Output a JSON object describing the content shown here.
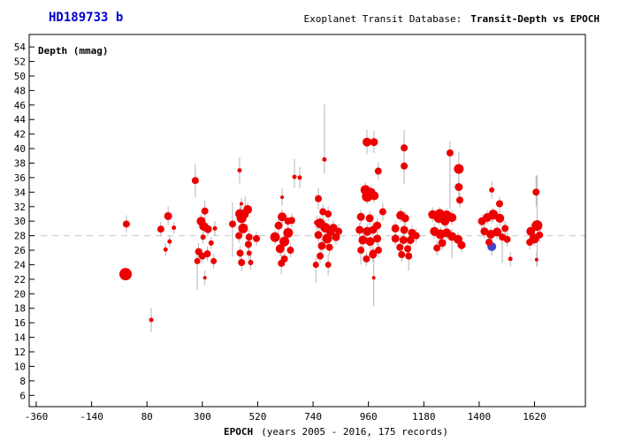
{
  "header": {
    "object_name": "HD189733 b",
    "database_label": "Exoplanet Transit Database:",
    "plot_title": "Transit-Depth vs EPOCH"
  },
  "chart_data": {
    "type": "scatter",
    "title": "Transit-Depth vs EPOCH",
    "ylabel": "Depth (mmag)",
    "xlabel": "EPOCH",
    "xlabel_note": "(years 2005 - 2016, 175 records)",
    "records": 175,
    "years": "2005 - 2016",
    "xlim": [
      -388,
      1822
    ],
    "ylim": [
      4.45,
      55.72
    ],
    "xticks": [
      -360,
      -140,
      80,
      300,
      520,
      740,
      960,
      1180,
      1400,
      1620
    ],
    "yticks": [
      6,
      8,
      10,
      12,
      14,
      16,
      18,
      20,
      22,
      24,
      26,
      28,
      30,
      32,
      34,
      36,
      38,
      40,
      42,
      44,
      46,
      48,
      50,
      52,
      54
    ],
    "grid": false,
    "reference_depth": 28.0,
    "colors": {
      "point": "#ee0000",
      "highlight_point": "#4444cc",
      "error_bar": "#b4b4b4",
      "reference_line": "#c8c8c8",
      "object_name": "#0000cc",
      "text": "#000000",
      "background": "#ffffff"
    },
    "points_format": [
      "epoch",
      "depth_mmag",
      "radius_px",
      "err_up",
      "err_down"
    ],
    "points": [
      [
        -5,
        22.7,
        7,
        0.4,
        0.4
      ],
      [
        -2,
        29.6,
        4,
        1.2,
        1.2
      ],
      [
        97,
        16.4,
        2.5,
        1.7,
        1.7
      ],
      [
        135,
        28.9,
        4,
        1,
        1
      ],
      [
        164,
        30.7,
        4.5,
        1.3,
        1.3
      ],
      [
        187,
        29.1,
        2.5,
        0.8,
        0.8
      ],
      [
        170,
        27.2,
        2.5,
        0.8,
        0.8
      ],
      [
        154,
        26.1,
        2.5,
        0.8,
        0.8
      ],
      [
        272,
        35.6,
        4,
        2.3,
        2.3
      ],
      [
        310,
        31.4,
        4,
        1.5,
        1.5
      ],
      [
        295,
        30,
        5,
        1,
        1
      ],
      [
        305,
        29.3,
        5,
        0.9,
        0.9
      ],
      [
        322,
        28.9,
        4.5,
        0.9,
        0.9
      ],
      [
        350,
        29,
        2.5,
        1,
        1
      ],
      [
        303,
        27.8,
        3,
        0.9,
        0.9
      ],
      [
        335,
        27,
        3,
        0.8,
        0.8
      ],
      [
        285,
        25.8,
        4,
        1.2,
        1.2
      ],
      [
        300,
        25.2,
        4,
        1,
        1
      ],
      [
        320,
        25.5,
        4,
        1,
        1
      ],
      [
        280,
        24.5,
        3.5,
        1,
        4
      ],
      [
        345,
        24.5,
        3.5,
        1,
        1
      ],
      [
        310,
        22.2,
        2,
        1,
        1
      ],
      [
        448,
        37,
        2.5,
        1.8,
        1.8
      ],
      [
        455,
        32.4,
        2,
        0.8,
        0.8
      ],
      [
        480,
        31.6,
        5,
        1,
        1
      ],
      [
        450,
        31,
        5.5,
        1.2,
        1.2
      ],
      [
        456,
        30.4,
        5.5,
        1,
        1
      ],
      [
        470,
        30.9,
        4,
        2.5,
        1
      ],
      [
        420,
        29.6,
        4,
        3,
        4.5
      ],
      [
        462,
        29,
        5.5,
        1,
        1
      ],
      [
        445,
        28,
        4,
        1,
        1
      ],
      [
        486,
        27.8,
        4,
        1,
        1
      ],
      [
        483,
        26.8,
        4,
        1,
        1
      ],
      [
        450,
        25.6,
        4,
        1,
        1
      ],
      [
        486,
        25.6,
        3,
        1,
        1
      ],
      [
        456,
        24.3,
        4,
        1.2,
        1.2
      ],
      [
        492,
        24.3,
        3,
        1,
        1
      ],
      [
        515,
        27.6,
        4,
        1,
        1
      ],
      [
        617,
        33.3,
        2,
        1.2,
        1.2
      ],
      [
        666,
        36.1,
        2.5,
        2.5,
        1.5
      ],
      [
        687,
        36,
        2.5,
        1.5,
        1.5
      ],
      [
        603,
        29.4,
        4.5,
        1,
        1
      ],
      [
        617,
        30.6,
        5,
        1,
        1
      ],
      [
        655,
        30.1,
        4,
        1,
        1
      ],
      [
        640,
        30,
        4,
        0.8,
        0.8
      ],
      [
        641,
        28.4,
        5.5,
        1,
        1
      ],
      [
        589,
        27.8,
        5.5,
        1,
        1
      ],
      [
        626,
        27.2,
        5.5,
        1,
        1
      ],
      [
        609,
        26.2,
        5,
        1,
        1
      ],
      [
        650,
        26,
        4,
        1,
        1
      ],
      [
        626,
        24.8,
        4,
        1,
        1
      ],
      [
        614,
        24.2,
        4,
        1.5,
        1.5
      ],
      [
        785,
        38.5,
        2.5,
        7.6,
        2
      ],
      [
        761,
        33.1,
        4,
        1.5,
        1.5
      ],
      [
        754,
        29.8,
        3,
        1,
        1
      ],
      [
        779,
        31.3,
        4,
        1,
        1
      ],
      [
        800,
        31,
        4,
        1,
        1
      ],
      [
        768,
        29.7,
        5.5,
        1,
        1
      ],
      [
        789,
        29.1,
        5.5,
        1,
        1
      ],
      [
        821,
        29.1,
        4.5,
        1,
        1
      ],
      [
        810,
        28.6,
        5,
        1,
        1
      ],
      [
        842,
        28.6,
        4,
        1,
        1
      ],
      [
        761,
        28.1,
        4.5,
        1,
        1
      ],
      [
        796,
        27.6,
        5.5,
        1,
        1
      ],
      [
        831,
        27.8,
        4.5,
        1,
        1
      ],
      [
        775,
        26.6,
        4.5,
        1,
        1
      ],
      [
        805,
        26.4,
        4,
        1,
        1
      ],
      [
        768,
        25.2,
        4,
        1,
        1
      ],
      [
        800,
        24,
        3.5,
        1.5,
        1.5
      ],
      [
        751,
        24,
        3.5,
        1,
        2.5
      ],
      [
        954,
        40.9,
        5,
        1.7,
        1.7
      ],
      [
        982,
        40.9,
        4.5,
        1.5,
        1.5
      ],
      [
        999,
        36.9,
        4,
        1.2,
        1.2
      ],
      [
        948,
        34.3,
        5.5,
        1,
        1
      ],
      [
        969,
        33.9,
        5.5,
        1,
        1
      ],
      [
        955,
        33.4,
        6,
        1,
        1
      ],
      [
        983,
        33.5,
        5,
        1,
        1
      ],
      [
        1017,
        31.3,
        4,
        1.2,
        1.2
      ],
      [
        930,
        30.6,
        4.5,
        1,
        1
      ],
      [
        965,
        30.4,
        4.5,
        1,
        1
      ],
      [
        995,
        29.4,
        4.5,
        1,
        1
      ],
      [
        925,
        28.8,
        4.5,
        1,
        1
      ],
      [
        955,
        28.6,
        5,
        1,
        1
      ],
      [
        978,
        28.8,
        4.5,
        1,
        1
      ],
      [
        938,
        27.4,
        5,
        1,
        1
      ],
      [
        967,
        27.2,
        5,
        1,
        1
      ],
      [
        995,
        27.6,
        4.5,
        1,
        1
      ],
      [
        930,
        26,
        4,
        1,
        2
      ],
      [
        978,
        25.6,
        4,
        1,
        1
      ],
      [
        1000,
        26,
        4,
        1,
        1
      ],
      [
        952,
        24.8,
        4,
        1,
        1
      ],
      [
        978,
        25.4,
        4.5,
        1,
        1
      ],
      [
        981,
        22.2,
        2,
        2.7,
        3.9
      ],
      [
        1102,
        40.1,
        4,
        2.5,
        5
      ],
      [
        1102,
        37.6,
        4,
        1.2,
        1.2
      ],
      [
        1088,
        30.8,
        5,
        1,
        1
      ],
      [
        1106,
        30.4,
        4.5,
        1,
        1
      ],
      [
        1067,
        29,
        4.5,
        1,
        1
      ],
      [
        1102,
        28.8,
        4.5,
        1,
        1
      ],
      [
        1133,
        28.4,
        4.5,
        1,
        1
      ],
      [
        1150,
        28,
        4,
        1,
        1
      ],
      [
        1067,
        27.6,
        4.5,
        1,
        1
      ],
      [
        1099,
        27.4,
        4.5,
        1,
        1
      ],
      [
        1127,
        27.4,
        4.5,
        1,
        1
      ],
      [
        1085,
        26.4,
        4,
        1,
        1
      ],
      [
        1116,
        26.2,
        4,
        1,
        1
      ],
      [
        1092,
        25.4,
        4,
        1,
        1
      ],
      [
        1120,
        25.2,
        4,
        1,
        2
      ],
      [
        1284,
        39.4,
        4,
        1.6,
        7.7
      ],
      [
        1319,
        37.2,
        5.5,
        2.4,
        2
      ],
      [
        1319,
        34.7,
        4.5,
        1.2,
        1.2
      ],
      [
        1323,
        32.9,
        4,
        1,
        1
      ],
      [
        1215,
        30.9,
        5,
        1,
        1
      ],
      [
        1243,
        31,
        5.5,
        1,
        1
      ],
      [
        1271,
        30.8,
        5.5,
        1,
        1
      ],
      [
        1292,
        30.5,
        5,
        1,
        1
      ],
      [
        1240,
        30.5,
        6,
        1,
        1
      ],
      [
        1264,
        30,
        5,
        1,
        1
      ],
      [
        1222,
        28.6,
        5,
        1,
        1
      ],
      [
        1246,
        28.2,
        5.5,
        1,
        1
      ],
      [
        1271,
        28.4,
        5,
        1,
        1
      ],
      [
        1292,
        27.9,
        5,
        1,
        3
      ],
      [
        1316,
        27.5,
        5,
        1,
        1
      ],
      [
        1330,
        26.7,
        4.5,
        1,
        1
      ],
      [
        1253,
        27,
        4.5,
        1,
        1
      ],
      [
        1232,
        26.3,
        4,
        1,
        1
      ],
      [
        1450,
        34.3,
        3,
        1.2,
        1.2
      ],
      [
        1481,
        32.4,
        4,
        1,
        1
      ],
      [
        1450,
        30.7,
        3,
        1,
        1
      ],
      [
        1411,
        30,
        4.5,
        1,
        1
      ],
      [
        1432,
        30.5,
        5,
        1,
        1
      ],
      [
        1456,
        30.9,
        5.5,
        1,
        1
      ],
      [
        1482,
        30.4,
        5,
        1,
        1
      ],
      [
        1503,
        29,
        4,
        1,
        1
      ],
      [
        1421,
        28.6,
        4.5,
        1,
        1
      ],
      [
        1446,
        28.2,
        5,
        1,
        1
      ],
      [
        1471,
        28.5,
        5,
        1,
        1
      ],
      [
        1492,
        27.8,
        4,
        1,
        3.5
      ],
      [
        1439,
        27.1,
        4,
        1,
        1
      ],
      [
        1511,
        27.5,
        4,
        1,
        1
      ],
      [
        1524,
        24.8,
        2.5,
        1,
        1
      ],
      [
        1626,
        34,
        4,
        2.2,
        2
      ],
      [
        1630,
        29.4,
        6,
        7,
        5.5
      ],
      [
        1605,
        28.6,
        5,
        1,
        1
      ],
      [
        1619,
        27.6,
        5.5,
        1,
        1
      ],
      [
        1601,
        27.1,
        4,
        1,
        1
      ],
      [
        1640,
        28.1,
        4,
        1,
        1
      ],
      [
        1628,
        24.7,
        2,
        1,
        1
      ]
    ],
    "highlight_point": [
      1450,
      26.5,
      5,
      1.2,
      1.2
    ]
  }
}
